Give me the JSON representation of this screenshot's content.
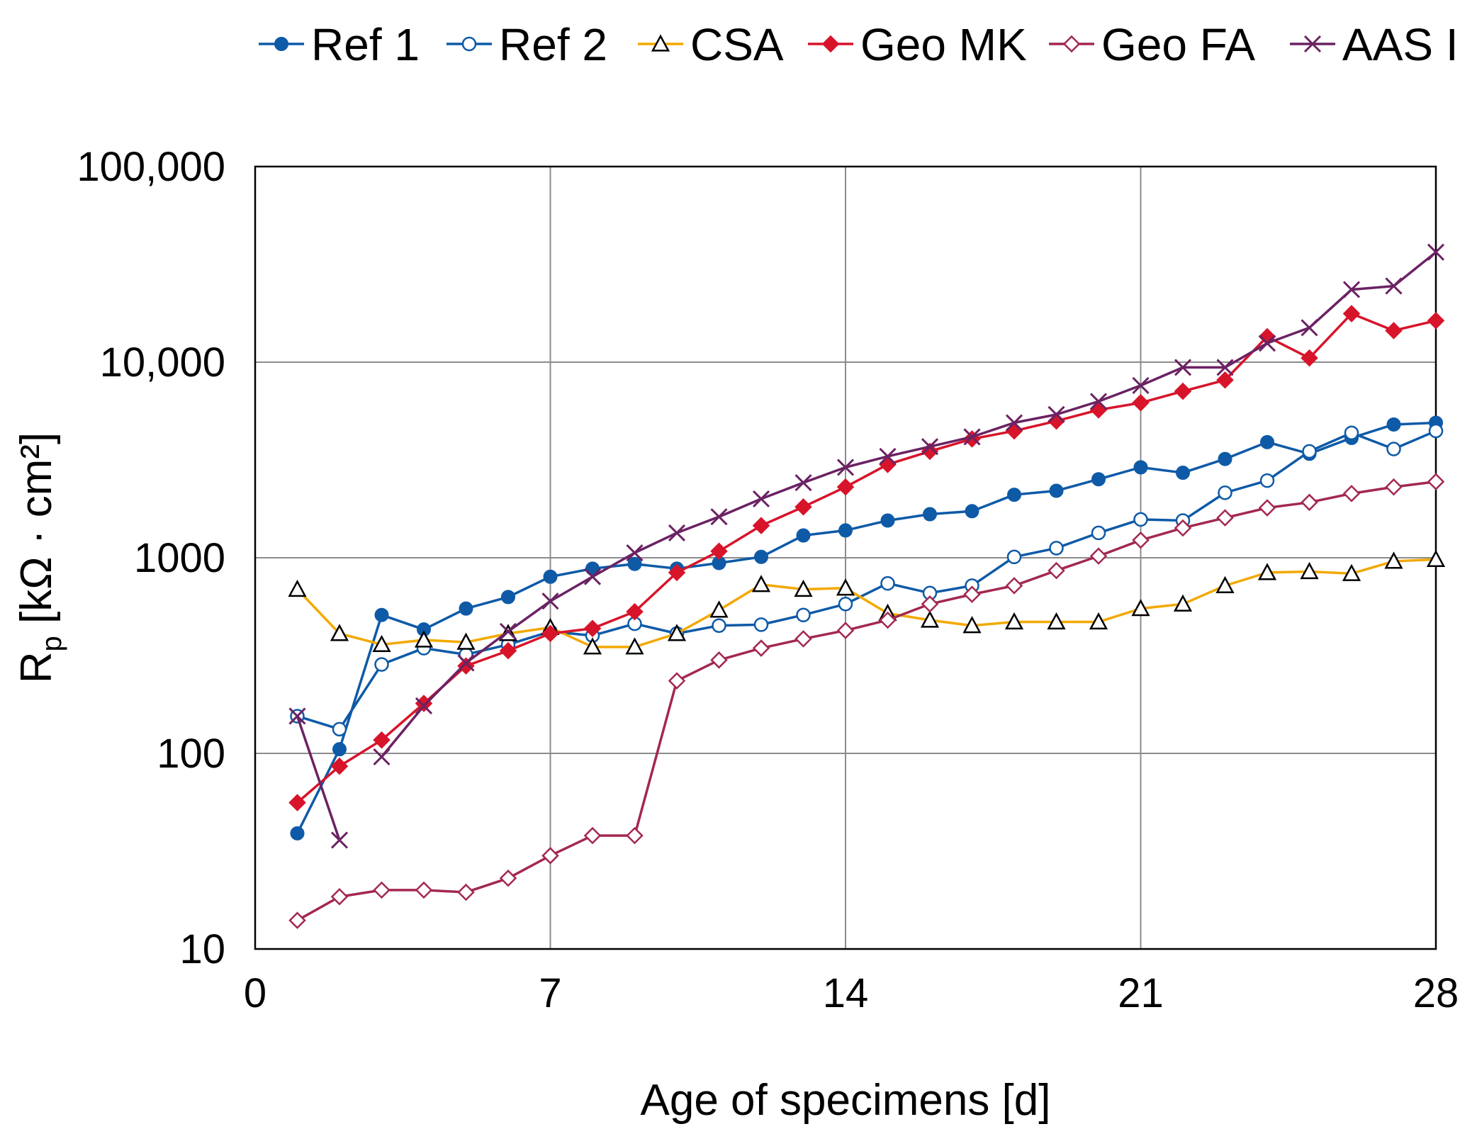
{
  "chart_data": {
    "type": "line",
    "title": "",
    "xlabel": "Age of specimens [d]",
    "ylabel": "R",
    "ylabel_subscript": "p",
    "ylabel_unit": " [kΩ · cm²]",
    "xlim": [
      0,
      28
    ],
    "ylim": [
      10,
      100000
    ],
    "yscale": "log",
    "grid": true,
    "legend_position": "top",
    "x_ticks": [
      "0",
      "7",
      "14",
      "21",
      "28"
    ],
    "y_ticks": [
      "10",
      "100",
      "1000",
      "10,000",
      "100,000"
    ],
    "x_tick_values": [
      0,
      7,
      14,
      21,
      28
    ],
    "y_tick_values": [
      10,
      100,
      1000,
      10000,
      100000
    ],
    "series": [
      {
        "name": "Ref 1",
        "color": "#0e5aa7",
        "marker": "circle-filled",
        "x": [
          1,
          2,
          3,
          4,
          5,
          6,
          7,
          8,
          9,
          10,
          11,
          12,
          13,
          14,
          15,
          16,
          17,
          18,
          19,
          20,
          21,
          22,
          23,
          24,
          25,
          26,
          27,
          28
        ],
        "values": [
          39,
          105,
          510,
          430,
          550,
          630,
          800,
          880,
          930,
          880,
          940,
          1010,
          1300,
          1380,
          1550,
          1670,
          1730,
          2100,
          2200,
          2520,
          2900,
          2720,
          3200,
          3900,
          3400,
          4100,
          4800,
          4900
        ]
      },
      {
        "name": "Ref 2",
        "color": "#0e5aa7",
        "marker": "circle-open",
        "x": [
          1,
          2,
          3,
          4,
          5,
          6,
          7,
          8,
          9,
          10,
          11,
          12,
          13,
          14,
          15,
          16,
          17,
          18,
          19,
          20,
          21,
          22,
          23,
          24,
          25,
          26,
          27,
          28
        ],
        "values": [
          155,
          133,
          285,
          345,
          320,
          360,
          420,
          400,
          460,
          410,
          450,
          455,
          510,
          580,
          740,
          660,
          720,
          1010,
          1120,
          1340,
          1570,
          1550,
          2150,
          2480,
          3500,
          4350,
          3600,
          4450
        ]
      },
      {
        "name": "CSA",
        "color": "#f2a900",
        "marker": "triangle-open",
        "x": [
          1,
          2,
          3,
          4,
          5,
          6,
          7,
          8,
          9,
          10,
          11,
          12,
          13,
          14,
          15,
          16,
          17,
          18,
          19,
          20,
          21,
          22,
          23,
          24,
          25,
          26,
          27,
          28
        ],
        "values": [
          690,
          410,
          360,
          380,
          370,
          410,
          440,
          350,
          350,
          410,
          540,
          730,
          690,
          700,
          520,
          480,
          450,
          470,
          470,
          470,
          550,
          580,
          720,
          840,
          850,
          830,
          960,
          980
        ]
      },
      {
        "name": "Geo MK",
        "color": "#d7142a",
        "marker": "diamond-filled",
        "x": [
          1,
          2,
          3,
          4,
          5,
          6,
          7,
          8,
          9,
          10,
          11,
          12,
          13,
          14,
          15,
          16,
          17,
          18,
          19,
          20,
          21,
          22,
          23,
          24,
          25,
          26,
          27,
          28
        ],
        "values": [
          56,
          86,
          117,
          180,
          280,
          335,
          410,
          435,
          530,
          840,
          1080,
          1460,
          1820,
          2300,
          3000,
          3500,
          4050,
          4450,
          5000,
          5700,
          6200,
          7100,
          8100,
          13500,
          10500,
          17700,
          14500,
          16300
        ]
      },
      {
        "name": "Geo FA",
        "color": "#a3284f",
        "marker": "diamond-open",
        "x": [
          1,
          2,
          3,
          4,
          5,
          6,
          7,
          8,
          9,
          10,
          11,
          12,
          13,
          14,
          15,
          16,
          17,
          18,
          19,
          20,
          21,
          22,
          23,
          24,
          25,
          26,
          27,
          28
        ],
        "values": [
          14,
          18.5,
          20,
          20,
          19.5,
          23,
          30,
          38,
          38,
          235,
          300,
          345,
          385,
          425,
          480,
          580,
          650,
          720,
          860,
          1020,
          1230,
          1420,
          1600,
          1800,
          1920,
          2130,
          2300,
          2450
        ]
      },
      {
        "name": "AAS I",
        "color": "#6b2263",
        "marker": "x",
        "x": [
          1,
          2,
          3,
          4,
          5,
          6,
          7,
          8,
          9,
          10,
          11,
          12,
          13,
          14,
          15,
          16,
          17,
          18,
          19,
          20,
          21,
          22,
          23,
          24,
          25,
          26,
          27,
          28
        ],
        "values": [
          155,
          36,
          96,
          175,
          290,
          420,
          600,
          800,
          1060,
          1340,
          1620,
          2000,
          2420,
          2900,
          3300,
          3700,
          4150,
          4900,
          5400,
          6300,
          7600,
          9400,
          9400,
          12500,
          15000,
          23500,
          24500,
          36500
        ]
      }
    ]
  }
}
